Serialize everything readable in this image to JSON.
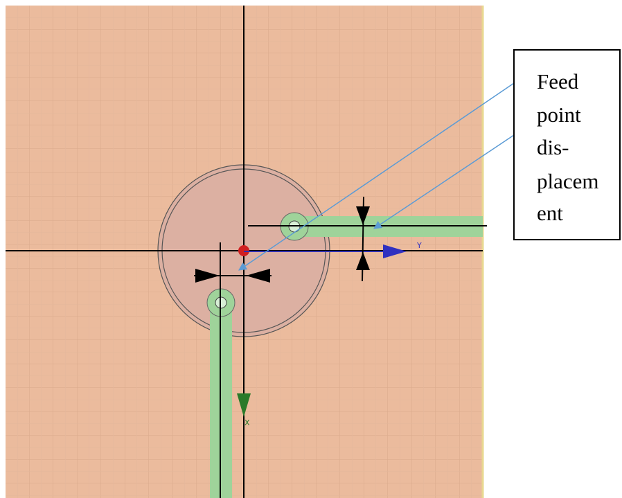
{
  "annotation": {
    "lines": [
      "Feed",
      "point",
      "dis-",
      "placem",
      "ent"
    ]
  },
  "axes": {
    "y_label": "Y",
    "x_label": "X"
  }
}
